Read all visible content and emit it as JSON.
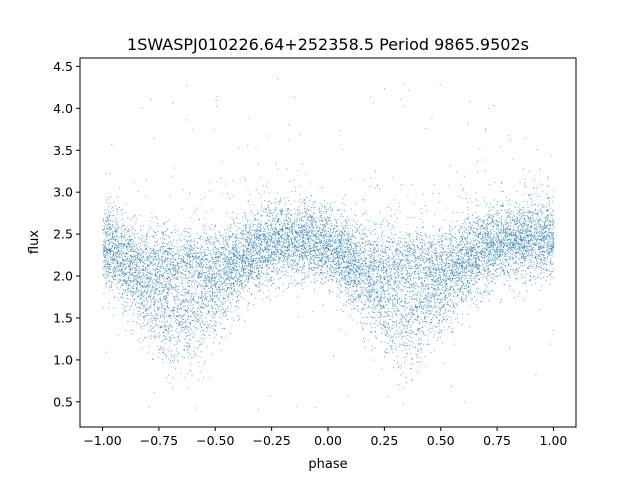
{
  "chart_data": {
    "type": "scatter",
    "title": "1SWASPJ010226.64+252358.5 Period 9865.9502s",
    "xlabel": "phase",
    "ylabel": "flux",
    "xlim": [
      -1.1,
      1.1
    ],
    "ylim": [
      0.2,
      4.6
    ],
    "xticks": [
      -1.0,
      -0.75,
      -0.5,
      -0.25,
      0.0,
      0.25,
      0.5,
      0.75,
      1.0
    ],
    "xtick_labels": [
      "−1.00",
      "−0.75",
      "−0.50",
      "−0.25",
      "0.00",
      "0.25",
      "0.50",
      "0.75",
      "1.00"
    ],
    "yticks": [
      0.5,
      1.0,
      1.5,
      2.0,
      2.5,
      3.0,
      3.5,
      4.0,
      4.5
    ],
    "ytick_labels": [
      "0.5",
      "1.0",
      "1.5",
      "2.0",
      "2.5",
      "3.0",
      "3.5",
      "4.0",
      "4.5"
    ],
    "grid": false,
    "marker_color": "#1f77b4",
    "x_range": [
      -1.0,
      1.0
    ],
    "baseline_flux": 2.45,
    "baseline_scatter": 0.22,
    "dips": [
      {
        "center_phase": -0.65,
        "min_flux": 1.55,
        "width": 0.17
      },
      {
        "center_phase": 0.35,
        "min_flux": 1.55,
        "width": 0.17
      }
    ],
    "outlier_flux_range": [
      0.4,
      4.4
    ]
  }
}
